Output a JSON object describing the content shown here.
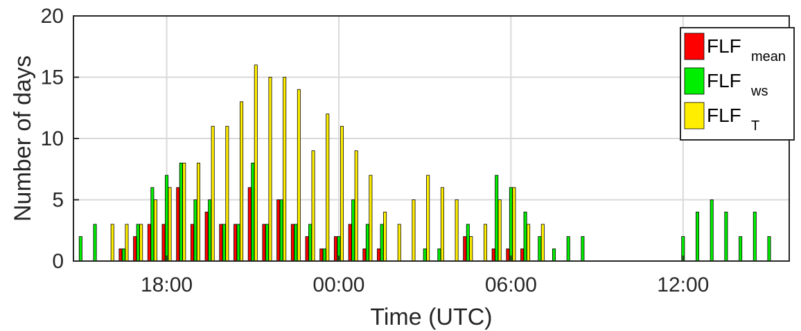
{
  "chart_data": {
    "type": "bar",
    "xlabel": "Time (UTC)",
    "ylabel": "Number of days",
    "ylim": [
      0,
      20
    ],
    "yticks": [
      0,
      5,
      10,
      15,
      20
    ],
    "xlim_hours": [
      15,
      21.5
    ],
    "xticks": [
      {
        "hour": 18,
        "label": "18:00"
      },
      {
        "hour": 24,
        "label": "00:00"
      },
      {
        "hour": 30,
        "label": "06:00"
      },
      {
        "hour": 36,
        "label": "12:00"
      }
    ],
    "grid": true,
    "legend_position": "top-right",
    "legend": [
      {
        "base": "FLF",
        "sub": "mean",
        "color": "#ff0000"
      },
      {
        "base": "FLF",
        "sub": "ws",
        "color": "#00ee00"
      },
      {
        "base": "FLF",
        "sub": "T",
        "color": "#ffee00"
      }
    ],
    "series": [
      {
        "name": "FLF_mean",
        "color": "#ff0000",
        "points": [
          [
            16.5,
            1
          ],
          [
            17,
            2
          ],
          [
            17.5,
            3
          ],
          [
            18,
            3
          ],
          [
            18.5,
            6
          ],
          [
            19,
            3
          ],
          [
            19.5,
            4
          ],
          [
            20,
            3
          ],
          [
            20.5,
            3
          ],
          [
            21,
            6
          ],
          [
            21.5,
            3
          ],
          [
            22,
            5
          ],
          [
            22.5,
            3
          ],
          [
            23,
            2
          ],
          [
            23.5,
            1
          ],
          [
            24,
            2
          ],
          [
            24.5,
            3
          ],
          [
            25,
            1
          ],
          [
            25.5,
            1
          ],
          [
            28.5,
            2
          ],
          [
            29.5,
            1
          ],
          [
            30,
            1
          ],
          [
            30.5,
            1
          ]
        ]
      },
      {
        "name": "FLF_ws",
        "color": "#00ee00",
        "points": [
          [
            15,
            2
          ],
          [
            15.5,
            3
          ],
          [
            16.5,
            1
          ],
          [
            17,
            3
          ],
          [
            17.5,
            6
          ],
          [
            18,
            7
          ],
          [
            18.5,
            8
          ],
          [
            19,
            5
          ],
          [
            19.5,
            5
          ],
          [
            20,
            3
          ],
          [
            20.5,
            3
          ],
          [
            21,
            8
          ],
          [
            21.5,
            3
          ],
          [
            22,
            5
          ],
          [
            22.5,
            3
          ],
          [
            23,
            3
          ],
          [
            23.5,
            1
          ],
          [
            24,
            2
          ],
          [
            24.5,
            5
          ],
          [
            25,
            3
          ],
          [
            25.5,
            3
          ],
          [
            27,
            1
          ],
          [
            27.5,
            1
          ],
          [
            28.5,
            3
          ],
          [
            29.5,
            7
          ],
          [
            30,
            6
          ],
          [
            30.5,
            4
          ],
          [
            31,
            2
          ],
          [
            31.5,
            1
          ],
          [
            32,
            2
          ],
          [
            32.5,
            2
          ],
          [
            36,
            2
          ],
          [
            36.5,
            4
          ],
          [
            37,
            5
          ],
          [
            37.5,
            4
          ],
          [
            38,
            2
          ],
          [
            38.5,
            4
          ],
          [
            39,
            2
          ]
        ]
      },
      {
        "name": "FLF_T",
        "color": "#ffee00",
        "points": [
          [
            16,
            3
          ],
          [
            16.5,
            3
          ],
          [
            17,
            3
          ],
          [
            17.5,
            5
          ],
          [
            18,
            6
          ],
          [
            18.5,
            8
          ],
          [
            19,
            8
          ],
          [
            19.5,
            11
          ],
          [
            20,
            11
          ],
          [
            20.5,
            13
          ],
          [
            21,
            16
          ],
          [
            21.5,
            15
          ],
          [
            22,
            15
          ],
          [
            22.5,
            14
          ],
          [
            23,
            9
          ],
          [
            23.5,
            12
          ],
          [
            24,
            11
          ],
          [
            24.5,
            9
          ],
          [
            25,
            7
          ],
          [
            25.5,
            4
          ],
          [
            26,
            3
          ],
          [
            26.5,
            5
          ],
          [
            27,
            7
          ],
          [
            27.5,
            6
          ],
          [
            28,
            5
          ],
          [
            28.5,
            2
          ],
          [
            29,
            3
          ],
          [
            29.5,
            5
          ],
          [
            30,
            6
          ],
          [
            30.5,
            3
          ],
          [
            31,
            3
          ]
        ]
      }
    ]
  }
}
